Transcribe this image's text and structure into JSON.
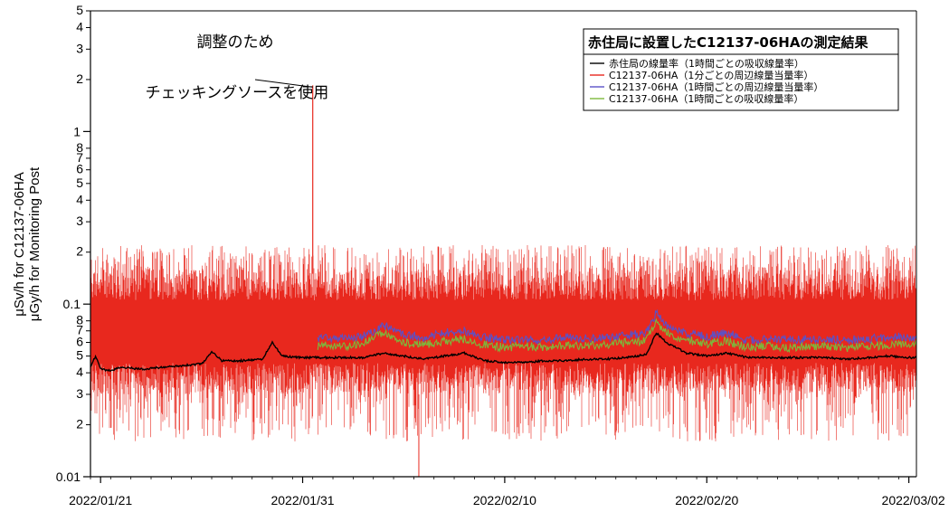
{
  "chart_data": {
    "type": "line",
    "title": "",
    "ylabel_line1": "μSv/h for C12137-06HA",
    "ylabel_line2": "μGy/h for Monitoring Post",
    "xlabel": "",
    "yscale": "log",
    "ylim": [
      0.01,
      5
    ],
    "xlim": [
      "2022-01-20T12:00",
      "2022-03-02T09:00"
    ],
    "x_ticks": [
      "2022/01/21",
      "2022/01/31",
      "2022/02/10",
      "2022/02/20",
      "2022/03/02"
    ],
    "y_major_ticks": [
      {
        "value": 0.01,
        "label": "0.01"
      },
      {
        "value": 0.1,
        "label": "0.1"
      },
      {
        "value": 1,
        "label": "1"
      }
    ],
    "y_minor_ticks": [
      {
        "value": 0.02,
        "label": "2"
      },
      {
        "value": 0.03,
        "label": "3"
      },
      {
        "value": 0.04,
        "label": "4"
      },
      {
        "value": 0.05,
        "label": "5"
      },
      {
        "value": 0.06,
        "label": "6"
      },
      {
        "value": 0.07,
        "label": "7"
      },
      {
        "value": 0.08,
        "label": "8"
      },
      {
        "value": 0.2,
        "label": "2"
      },
      {
        "value": 0.3,
        "label": "3"
      },
      {
        "value": 0.4,
        "label": "4"
      },
      {
        "value": 0.5,
        "label": "5"
      },
      {
        "value": 0.6,
        "label": "6"
      },
      {
        "value": 0.7,
        "label": "7"
      },
      {
        "value": 0.8,
        "label": "8"
      },
      {
        "value": 2,
        "label": "2"
      },
      {
        "value": 3,
        "label": "3"
      },
      {
        "value": 4,
        "label": "4"
      },
      {
        "value": 5,
        "label": "5"
      }
    ],
    "legend": {
      "title": "赤住局に設置したC12137-06HAの測定結果",
      "placement": "top-right"
    },
    "annotation": {
      "line1": "調整のため",
      "line2": "チェッキングソースを使用",
      "points_to": {
        "x": "2022-01-31T12:00",
        "y": 1.85
      }
    },
    "series": [
      {
        "name": "赤住局の線量率（1時間ごとの吸収線量率）",
        "color": "#000000",
        "kind": "hourly",
        "points": [
          [
            "2022-01-20T12:00",
            0.043
          ],
          [
            "2022-01-20T18:00",
            0.05
          ],
          [
            "2022-01-21T00:00",
            0.042
          ],
          [
            "2022-01-21T12:00",
            0.041
          ],
          [
            "2022-01-22T00:00",
            0.043
          ],
          [
            "2022-01-23T00:00",
            0.042
          ],
          [
            "2022-01-24T00:00",
            0.043
          ],
          [
            "2022-01-25T00:00",
            0.044
          ],
          [
            "2022-01-26T00:00",
            0.045
          ],
          [
            "2022-01-26T12:00",
            0.053
          ],
          [
            "2022-01-27T00:00",
            0.047
          ],
          [
            "2022-01-28T00:00",
            0.047
          ],
          [
            "2022-01-29T00:00",
            0.048
          ],
          [
            "2022-01-29T12:00",
            0.06
          ],
          [
            "2022-01-30T00:00",
            0.05
          ],
          [
            "2022-01-31T00:00",
            0.049
          ],
          [
            "2022-02-01T00:00",
            0.049
          ],
          [
            "2022-02-02T00:00",
            0.049
          ],
          [
            "2022-02-03T00:00",
            0.049
          ],
          [
            "2022-02-04T00:00",
            0.052
          ],
          [
            "2022-02-05T00:00",
            0.05
          ],
          [
            "2022-02-06T00:00",
            0.048
          ],
          [
            "2022-02-07T00:00",
            0.05
          ],
          [
            "2022-02-08T00:00",
            0.052
          ],
          [
            "2022-02-09T00:00",
            0.047
          ],
          [
            "2022-02-10T00:00",
            0.046
          ],
          [
            "2022-02-11T00:00",
            0.046
          ],
          [
            "2022-02-12T00:00",
            0.047
          ],
          [
            "2022-02-13T00:00",
            0.047
          ],
          [
            "2022-02-14T00:00",
            0.048
          ],
          [
            "2022-02-15T00:00",
            0.048
          ],
          [
            "2022-02-16T00:00",
            0.049
          ],
          [
            "2022-02-17T00:00",
            0.051
          ],
          [
            "2022-02-17T12:00",
            0.068
          ],
          [
            "2022-02-18T00:00",
            0.06
          ],
          [
            "2022-02-19T00:00",
            0.052
          ],
          [
            "2022-02-20T00:00",
            0.05
          ],
          [
            "2022-02-21T00:00",
            0.052
          ],
          [
            "2022-02-22T00:00",
            0.049
          ],
          [
            "2022-02-23T00:00",
            0.049
          ],
          [
            "2022-02-24T00:00",
            0.049
          ],
          [
            "2022-02-25T00:00",
            0.049
          ],
          [
            "2022-02-26T00:00",
            0.049
          ],
          [
            "2022-02-27T00:00",
            0.048
          ],
          [
            "2022-02-28T00:00",
            0.049
          ],
          [
            "2022-03-01T00:00",
            0.05
          ],
          [
            "2022-03-02T00:00",
            0.049
          ],
          [
            "2022-03-02T09:00",
            0.049
          ]
        ]
      },
      {
        "name": "C12137-06HA（1分ごとの周辺線量当量率）",
        "color": "#e8281e",
        "kind": "minute",
        "typical_range": [
          0.03,
          0.16
        ],
        "spread_range": [
          0.016,
          0.22
        ],
        "start": "2022-01-20T12:00",
        "end": "2022-03-02T09:00",
        "peak": {
          "x": "2022-01-31T12:00",
          "y": 1.85
        },
        "dips": [
          {
            "x": "2022-02-05T18:00",
            "y": 0.01
          }
        ]
      },
      {
        "name": "C12137-06HA（1時間ごとの周辺線量当量率）",
        "color": "#5a52c8",
        "kind": "hourly",
        "start": "2022-01-31T18:00",
        "points": [
          [
            "2022-01-31T18:00",
            0.063
          ],
          [
            "2022-02-01T00:00",
            0.064
          ],
          [
            "2022-02-02T00:00",
            0.063
          ],
          [
            "2022-02-03T00:00",
            0.065
          ],
          [
            "2022-02-04T00:00",
            0.075
          ],
          [
            "2022-02-05T00:00",
            0.066
          ],
          [
            "2022-02-06T00:00",
            0.064
          ],
          [
            "2022-02-07T00:00",
            0.068
          ],
          [
            "2022-02-08T00:00",
            0.07
          ],
          [
            "2022-02-09T00:00",
            0.064
          ],
          [
            "2022-02-10T00:00",
            0.062
          ],
          [
            "2022-02-11T00:00",
            0.063
          ],
          [
            "2022-02-12T00:00",
            0.062
          ],
          [
            "2022-02-13T00:00",
            0.064
          ],
          [
            "2022-02-14T00:00",
            0.063
          ],
          [
            "2022-02-15T00:00",
            0.064
          ],
          [
            "2022-02-16T00:00",
            0.066
          ],
          [
            "2022-02-17T00:00",
            0.068
          ],
          [
            "2022-02-17T12:00",
            0.088
          ],
          [
            "2022-02-18T00:00",
            0.075
          ],
          [
            "2022-02-19T00:00",
            0.068
          ],
          [
            "2022-02-20T00:00",
            0.065
          ],
          [
            "2022-02-21T00:00",
            0.068
          ],
          [
            "2022-02-22T00:00",
            0.062
          ],
          [
            "2022-02-23T00:00",
            0.063
          ],
          [
            "2022-02-24T00:00",
            0.062
          ],
          [
            "2022-02-25T00:00",
            0.063
          ],
          [
            "2022-02-26T00:00",
            0.063
          ],
          [
            "2022-02-27T00:00",
            0.062
          ],
          [
            "2022-02-28T00:00",
            0.063
          ],
          [
            "2022-03-01T00:00",
            0.064
          ],
          [
            "2022-03-02T00:00",
            0.065
          ],
          [
            "2022-03-02T09:00",
            0.064
          ]
        ]
      },
      {
        "name": "C12137-06HA（1時間ごとの吸収線量率）",
        "color": "#7cb83c",
        "kind": "hourly",
        "start": "2022-01-31T18:00",
        "points": [
          [
            "2022-01-31T18:00",
            0.057
          ],
          [
            "2022-02-01T00:00",
            0.058
          ],
          [
            "2022-02-02T00:00",
            0.057
          ],
          [
            "2022-02-03T00:00",
            0.059
          ],
          [
            "2022-02-04T00:00",
            0.068
          ],
          [
            "2022-02-05T00:00",
            0.06
          ],
          [
            "2022-02-06T00:00",
            0.058
          ],
          [
            "2022-02-07T00:00",
            0.061
          ],
          [
            "2022-02-08T00:00",
            0.063
          ],
          [
            "2022-02-09T00:00",
            0.058
          ],
          [
            "2022-02-10T00:00",
            0.056
          ],
          [
            "2022-02-11T00:00",
            0.057
          ],
          [
            "2022-02-12T00:00",
            0.056
          ],
          [
            "2022-02-13T00:00",
            0.058
          ],
          [
            "2022-02-14T00:00",
            0.057
          ],
          [
            "2022-02-15T00:00",
            0.058
          ],
          [
            "2022-02-16T00:00",
            0.06
          ],
          [
            "2022-02-17T00:00",
            0.061
          ],
          [
            "2022-02-17T12:00",
            0.08
          ],
          [
            "2022-02-18T00:00",
            0.068
          ],
          [
            "2022-02-19T00:00",
            0.062
          ],
          [
            "2022-02-20T00:00",
            0.059
          ],
          [
            "2022-02-21T00:00",
            0.061
          ],
          [
            "2022-02-22T00:00",
            0.056
          ],
          [
            "2022-02-23T00:00",
            0.057
          ],
          [
            "2022-02-24T00:00",
            0.056
          ],
          [
            "2022-02-25T00:00",
            0.057
          ],
          [
            "2022-02-26T00:00",
            0.057
          ],
          [
            "2022-02-27T00:00",
            0.056
          ],
          [
            "2022-02-28T00:00",
            0.057
          ],
          [
            "2022-03-01T00:00",
            0.058
          ],
          [
            "2022-03-02T00:00",
            0.059
          ],
          [
            "2022-03-02T09:00",
            0.058
          ]
        ]
      }
    ]
  }
}
